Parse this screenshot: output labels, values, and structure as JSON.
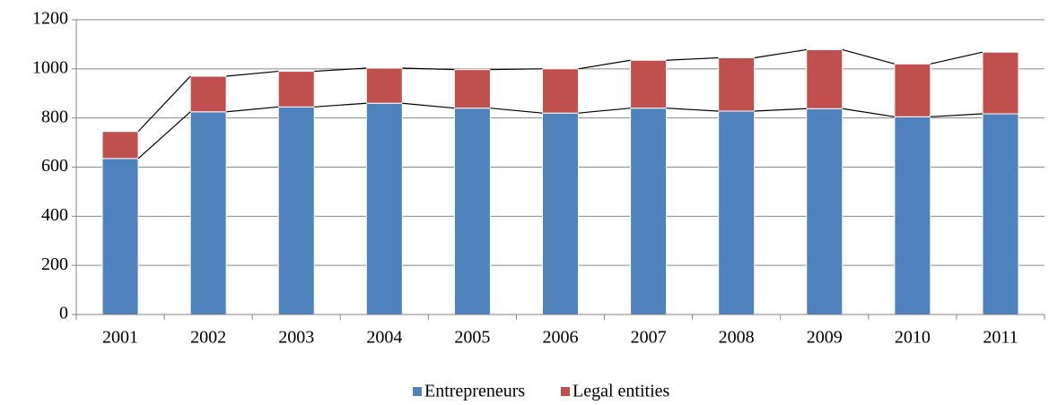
{
  "chart_data": {
    "type": "stacked_bar",
    "categories": [
      "2001",
      "2002",
      "2003",
      "2004",
      "2005",
      "2006",
      "2007",
      "2008",
      "2009",
      "2010",
      "2011"
    ],
    "series": [
      {
        "name": "Entrepreneurs",
        "color": "#4f81bd",
        "values": [
          635,
          825,
          845,
          860,
          840,
          820,
          840,
          828,
          838,
          805,
          817
        ]
      },
      {
        "name": "Legal entities",
        "color": "#c0504d",
        "values": [
          110,
          145,
          145,
          143,
          157,
          180,
          195,
          217,
          240,
          215,
          251
        ]
      }
    ],
    "ylim": [
      0,
      1200
    ],
    "yticks": [
      0,
      200,
      400,
      600,
      800,
      1000,
      1200
    ],
    "grid": true,
    "series_lines": true,
    "legend": "bottom"
  }
}
